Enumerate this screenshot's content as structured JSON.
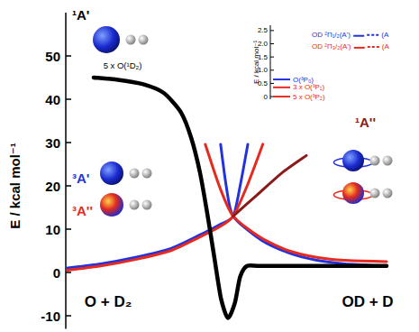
{
  "chart_data": [
    {
      "type": "line",
      "ylabel": "E / kcal mol⁻¹",
      "xlim": [
        0,
        100
      ],
      "ylim": [
        -13,
        60
      ],
      "yticks": [
        -10,
        0,
        10,
        20,
        30,
        40,
        50
      ],
      "tick_labels": "y",
      "series": [
        {
          "name": "¹A'",
          "color": "#000000",
          "x": [
            8,
            15,
            22,
            28,
            33,
            36,
            38.5,
            40.5,
            42.5,
            44.5,
            46.5,
            48.5,
            50,
            52,
            56,
            70,
            92
          ],
          "values": [
            45,
            44.5,
            43.5,
            41.5,
            37,
            31,
            23,
            14,
            4,
            -6,
            -10.5,
            -7,
            -1,
            1.5,
            1.5,
            1.5,
            1.5
          ]
        },
        {
          "name": "³A'",
          "color": "#2233dd",
          "x": [
            0,
            10,
            20,
            30,
            38,
            44,
            48,
            50,
            52.2,
            null,
            44.4,
            46,
            48,
            56,
            64,
            72,
            80,
            92
          ],
          "values": [
            1,
            2,
            3.5,
            5.5,
            8.5,
            11,
            13,
            20,
            29.6,
            null,
            29.6,
            20,
            13,
            7.5,
            4.5,
            2.8,
            2,
            1.5
          ]
        },
        {
          "name": "³A''",
          "color": "#e62a1f",
          "x": [
            0.5,
            10,
            20,
            30,
            38,
            44,
            48,
            52,
            56.5,
            null,
            40,
            44,
            48,
            56,
            64,
            72,
            80,
            92
          ],
          "values": [
            0.5,
            1.5,
            3,
            5,
            8,
            10.5,
            13,
            20,
            29.6,
            null,
            29.6,
            20,
            13,
            8,
            5,
            3.5,
            2.8,
            2.5
          ]
        },
        {
          "name": "¹A''",
          "color": "#8b1a1a",
          "x": [
            48,
            55,
            62,
            69
          ],
          "values": [
            13,
            18,
            23,
            27
          ]
        }
      ],
      "annotations": [
        "5 x O(¹D₂)",
        "O + D₂",
        "OD + D"
      ]
    },
    {
      "type": "levels",
      "ylabel": "E / kcal mol⁻¹",
      "ylim": [
        -0.1,
        2.7
      ],
      "yticks": [
        0,
        0.5,
        {
          "value": 1,
          "label": "1.0"
        },
        1.5,
        {
          "value": 2,
          "label": "2.0"
        },
        2.5
      ],
      "tick_labels": "y",
      "levels": [
        {
          "name": "O(³P₀)",
          "color": "#2233dd",
          "value": 0.65
        },
        {
          "name": "3 x O(³P₁)",
          "color": "#e62a1f",
          "value": 0.35
        },
        {
          "name": "5 x O(³P₂)",
          "color": "#e62a1f",
          "value": 0
        }
      ],
      "od_levels": [
        {
          "name": "OD ²Π₁/₂(A')",
          "symmetry": "(A",
          "color": "#2233dd",
          "value": 2.3
        },
        {
          "name": "OD ²Π₃/₂(A')",
          "symmetry": "(A",
          "color": "#e62a1f",
          "value": 1.85
        }
      ]
    }
  ]
}
